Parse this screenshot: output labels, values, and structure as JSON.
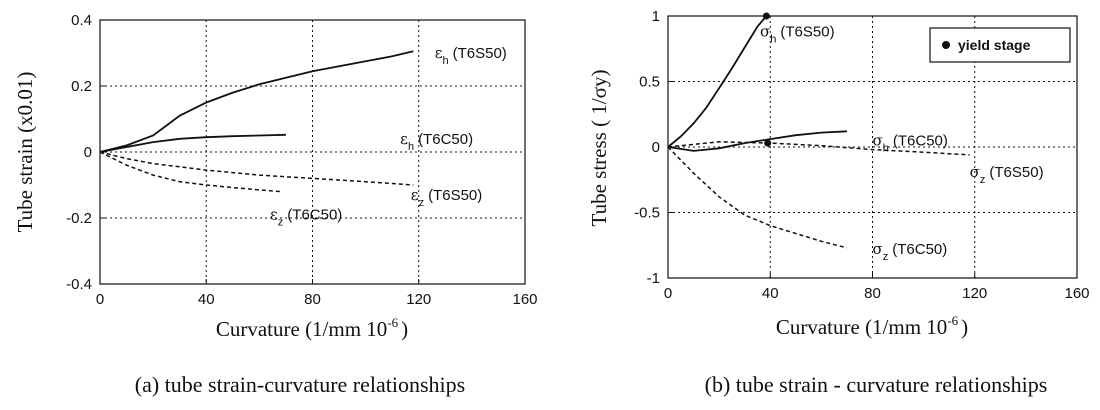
{
  "chart_data": [
    {
      "type": "line",
      "panel": "a",
      "caption": "(a) tube strain-curvature relationships",
      "xlabel": "Curvature (1/mm 10",
      "xlabel_sup": "-6",
      "xlabel_close": ")",
      "ylabel": "Tube strain (x0.01)",
      "xlim": [
        0,
        160
      ],
      "ylim": [
        -0.4,
        0.4
      ],
      "xticks": [
        0,
        40,
        80,
        120,
        160
      ],
      "yticks": [
        -0.4,
        -0.2,
        0,
        0.2,
        0.4
      ],
      "ytick_labels": [
        "-0.4",
        "-0.2",
        "0",
        "0.2",
        "0.4"
      ],
      "grid": true,
      "series": [
        {
          "name": "εh (T6S50)",
          "symbol": "ε",
          "sub": "h",
          "tag": "(T6S50)",
          "style": "solid",
          "x": [
            0,
            10,
            20,
            25,
            30,
            40,
            50,
            60,
            70,
            80,
            90,
            100,
            110,
            118
          ],
          "y": [
            0,
            0.02,
            0.05,
            0.08,
            0.11,
            0.15,
            0.18,
            0.205,
            0.225,
            0.245,
            0.26,
            0.275,
            0.29,
            0.305
          ]
        },
        {
          "name": "εh (T6C50)",
          "symbol": "ε",
          "sub": "h",
          "tag": "(T6C50)",
          "style": "solid",
          "x": [
            0,
            10,
            20,
            30,
            40,
            50,
            60,
            70
          ],
          "y": [
            0,
            0.015,
            0.03,
            0.04,
            0.045,
            0.048,
            0.05,
            0.052
          ]
        },
        {
          "name": "εz (T6S50)",
          "symbol": "ε",
          "sub": "z",
          "tag": "(T6S50)",
          "style": "dashed",
          "x": [
            0,
            10,
            20,
            30,
            40,
            60,
            80,
            100,
            118
          ],
          "y": [
            0,
            -0.02,
            -0.035,
            -0.045,
            -0.055,
            -0.07,
            -0.08,
            -0.09,
            -0.1
          ]
        },
        {
          "name": "εz (T6C50)",
          "symbol": "ε",
          "sub": "z",
          "tag": "(T6C50)",
          "style": "dashed",
          "x": [
            0,
            10,
            20,
            30,
            40,
            50,
            60,
            68
          ],
          "y": [
            0,
            -0.04,
            -0.07,
            -0.09,
            -0.1,
            -0.108,
            -0.115,
            -0.12
          ]
        }
      ]
    },
    {
      "type": "line",
      "panel": "b",
      "caption": "(b) tube strain - curvature relationships",
      "xlabel": "Curvature (1/mm 10",
      "xlabel_sup": "-6",
      "xlabel_close": ")",
      "ylabel": "Tube stress  ( 1/σy)",
      "xlim": [
        0,
        160
      ],
      "ylim": [
        -1,
        1
      ],
      "xticks": [
        0,
        40,
        80,
        120,
        160
      ],
      "yticks": [
        -1,
        -0.5,
        0,
        0.5,
        1
      ],
      "ytick_labels": [
        "-1",
        "-0.5",
        "0",
        "0.5",
        "1"
      ],
      "grid": true,
      "legend": {
        "position": "top-right",
        "marker": "dot",
        "label": "yield stage"
      },
      "yield_points": [
        {
          "x": 38.5,
          "y": 1.0
        },
        {
          "x": 39,
          "y": 0.03
        }
      ],
      "series": [
        {
          "name": "σh (T6S50)",
          "symbol": "σ",
          "sub": "h",
          "tag": "(T6S50)",
          "style": "solid",
          "x": [
            0,
            5,
            10,
            15,
            20,
            25,
            30,
            35,
            38.5
          ],
          "y": [
            0,
            0.08,
            0.18,
            0.3,
            0.45,
            0.6,
            0.76,
            0.92,
            1.0
          ]
        },
        {
          "name": "σh (T6C50)",
          "symbol": "σ",
          "sub": "h",
          "tag": "(T6C50)",
          "style": "solid",
          "x": [
            0,
            10,
            20,
            30,
            40,
            50,
            60,
            70
          ],
          "y": [
            0,
            -0.03,
            -0.01,
            0.03,
            0.06,
            0.09,
            0.11,
            0.12
          ]
        },
        {
          "name": "σz (T6S50)",
          "symbol": "σ",
          "sub": "z",
          "tag": "(T6S50)",
          "style": "dashed",
          "x": [
            0,
            20,
            40,
            60,
            80,
            100,
            118
          ],
          "y": [
            0,
            0.04,
            0.03,
            0.01,
            -0.02,
            -0.04,
            -0.06
          ]
        },
        {
          "name": "σz (T6C50)",
          "symbol": "σ",
          "sub": "z",
          "tag": "(T6C50)",
          "style": "dashed",
          "x": [
            0,
            10,
            20,
            30,
            40,
            50,
            60,
            70
          ],
          "y": [
            0,
            -0.2,
            -0.38,
            -0.52,
            -0.6,
            -0.66,
            -0.72,
            -0.77
          ]
        }
      ]
    }
  ]
}
